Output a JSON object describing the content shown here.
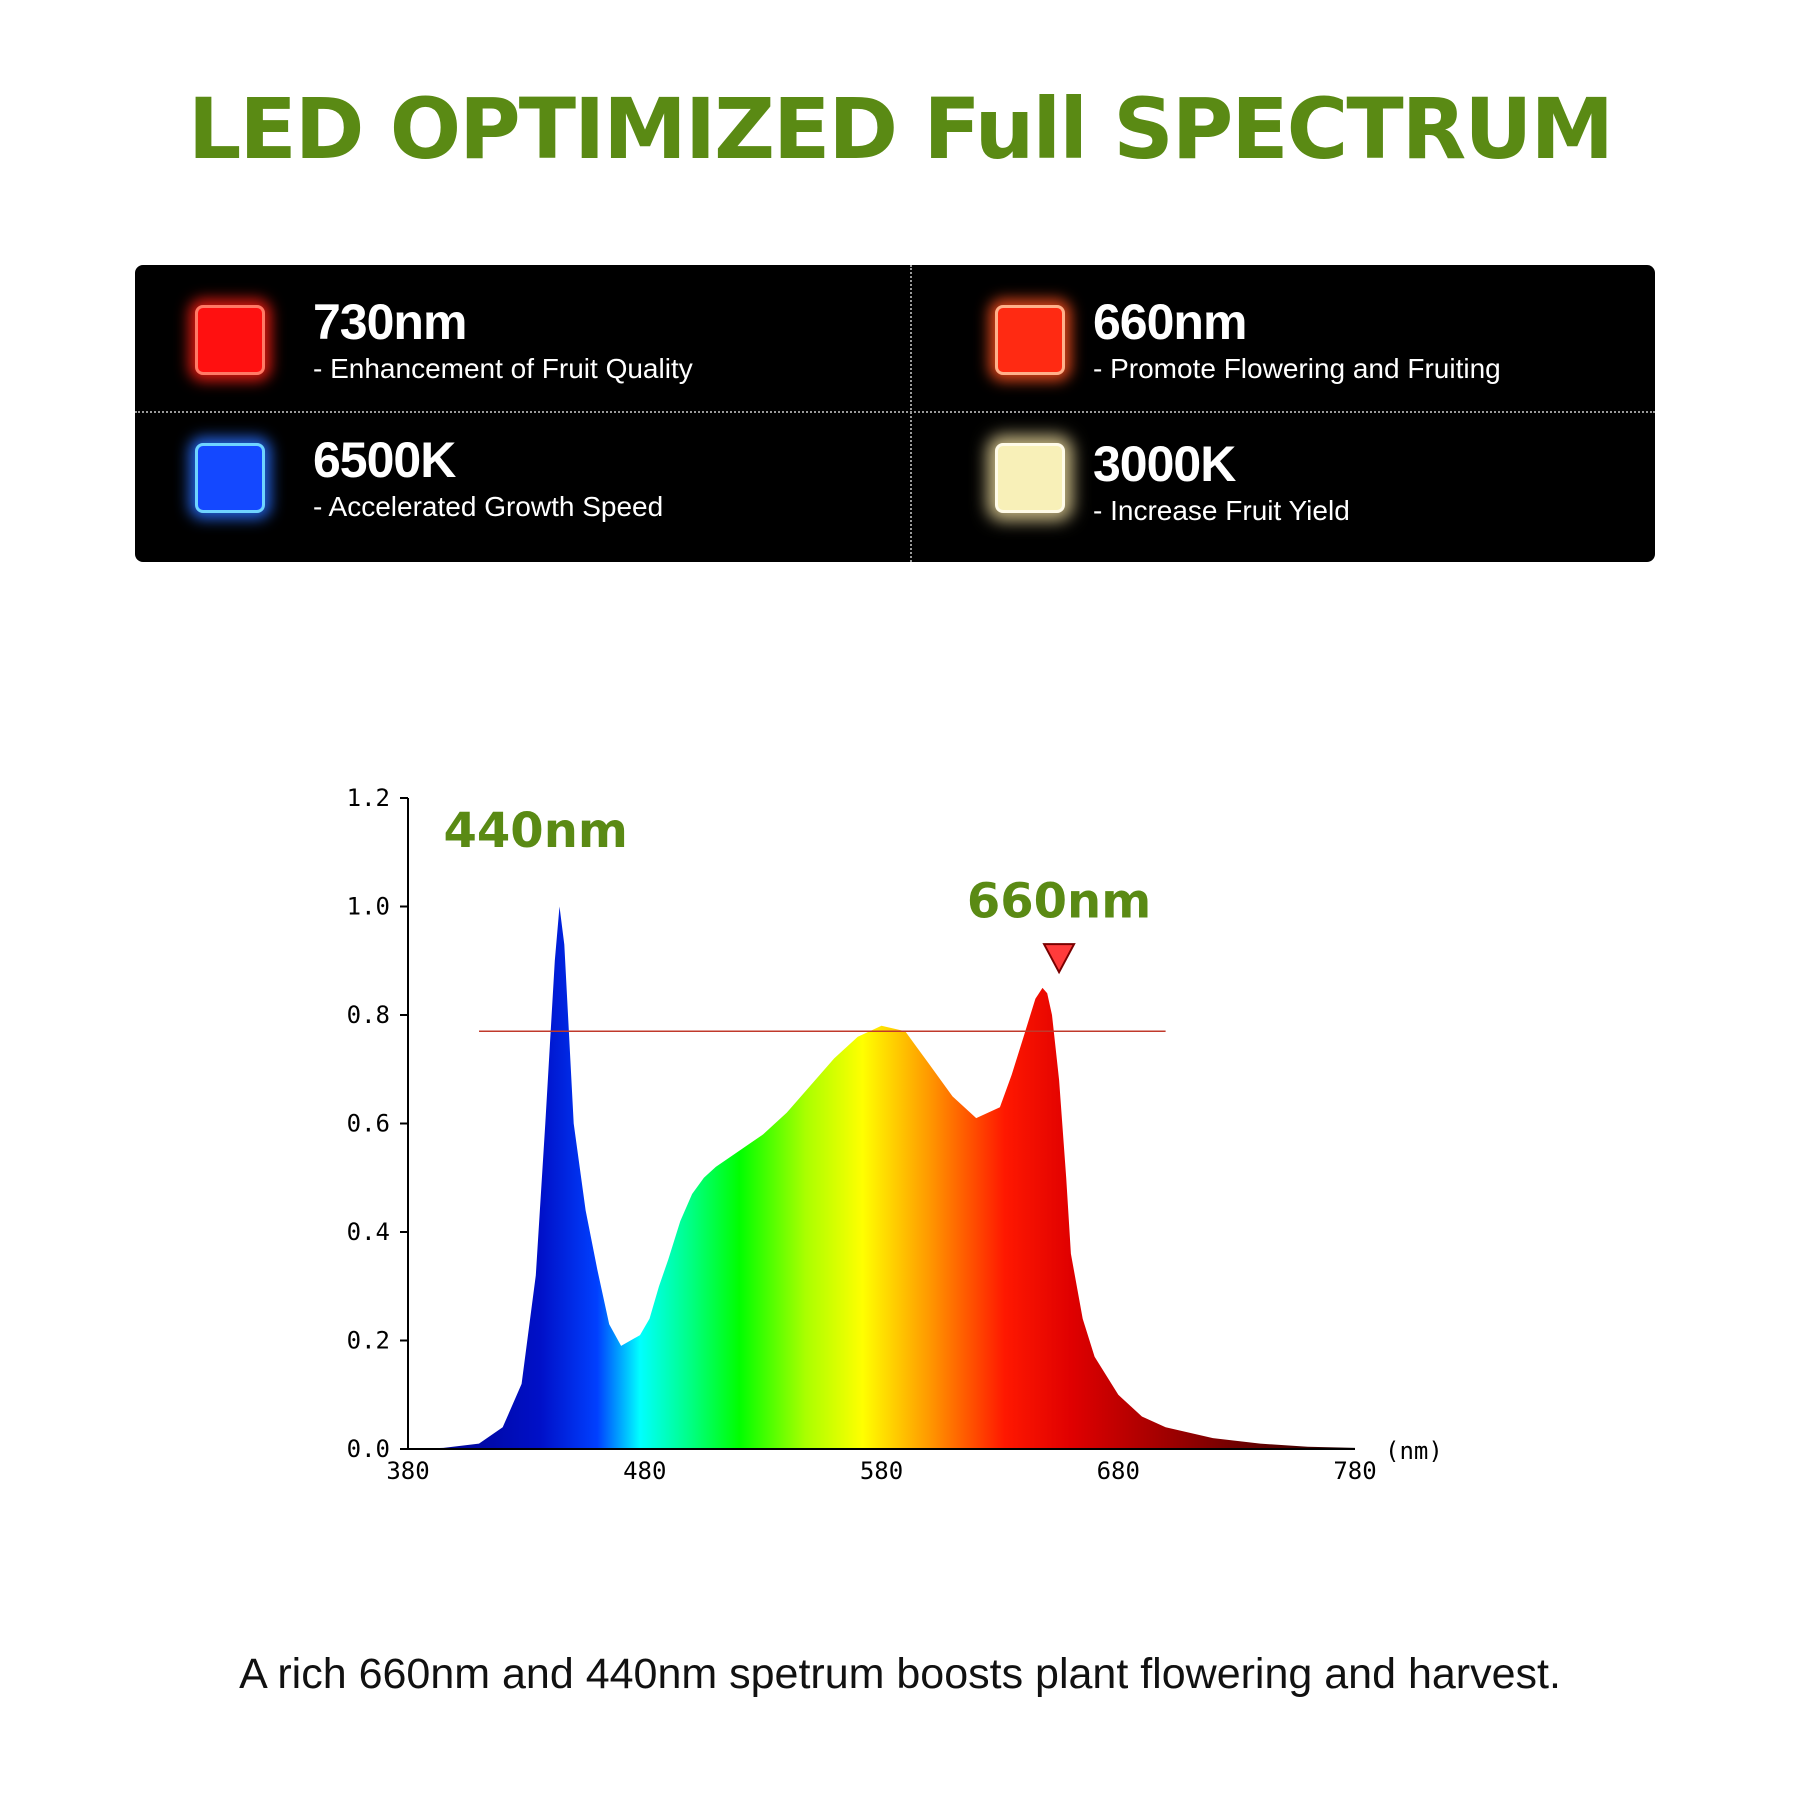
{
  "header": {
    "title": "LED OPTIMIZED Full SPECTRUM"
  },
  "spectrum_types": [
    {
      "head": "730nm",
      "sub": "- Enhancement of Fruit Quality",
      "color": "#ff1010",
      "icon": "red-led-icon"
    },
    {
      "head": "660nm",
      "sub": "- Promote Flowering and Fruiting",
      "color": "#ff2a12",
      "icon": "deep-red-led-icon"
    },
    {
      "head": "6500K",
      "sub": "- Accelerated Growth Speed",
      "color": "#1448ff",
      "icon": "blue-led-icon"
    },
    {
      "head": "3000K",
      "sub": "- Increase Fruit Yield",
      "color": "#f8f0b8",
      "icon": "warm-white-led-icon"
    }
  ],
  "chart_data": {
    "type": "area",
    "title": "",
    "xlabel": "(nm)",
    "ylabel": "",
    "xlim": [
      380,
      780
    ],
    "ylim": [
      0,
      1.2
    ],
    "x_ticks": [
      "380",
      "480",
      "580",
      "680",
      "780"
    ],
    "y_ticks": [
      "0.0",
      "0.2",
      "0.4",
      "0.6",
      "0.8",
      "1.0",
      "1.2"
    ],
    "series": [
      {
        "x": [
          380,
          395,
          410,
          420,
          428,
          434,
          438,
          442,
          444,
          446,
          450,
          455,
          460,
          465,
          470,
          474,
          478,
          482,
          486,
          490,
          495,
          500,
          505,
          510,
          520,
          530,
          540,
          550,
          560,
          570,
          580,
          590,
          595,
          600,
          610,
          620,
          630,
          635,
          640,
          645,
          648,
          650,
          652,
          655,
          658,
          660,
          665,
          670,
          680,
          690,
          700,
          720,
          740,
          760,
          780
        ],
        "values": [
          0,
          0.002,
          0.01,
          0.04,
          0.12,
          0.32,
          0.6,
          0.9,
          1.0,
          0.93,
          0.6,
          0.44,
          0.33,
          0.23,
          0.19,
          0.2,
          0.21,
          0.24,
          0.3,
          0.35,
          0.42,
          0.47,
          0.5,
          0.52,
          0.55,
          0.58,
          0.62,
          0.67,
          0.72,
          0.76,
          0.78,
          0.77,
          0.74,
          0.71,
          0.65,
          0.61,
          0.63,
          0.69,
          0.76,
          0.83,
          0.85,
          0.84,
          0.8,
          0.68,
          0.5,
          0.36,
          0.24,
          0.17,
          0.1,
          0.06,
          0.04,
          0.02,
          0.01,
          0.004,
          0.002
        ]
      }
    ],
    "reference_line": {
      "y": 0.77,
      "x_start": 410,
      "x_end": 700,
      "color": "#c0392b"
    },
    "annotations": [
      {
        "text": "440nm"
      },
      {
        "text": "660nm",
        "marker": "down-triangle-marker"
      }
    ]
  },
  "footer": {
    "caption": "A rich 660nm and 440nm spetrum boosts plant flowering and harvest."
  }
}
